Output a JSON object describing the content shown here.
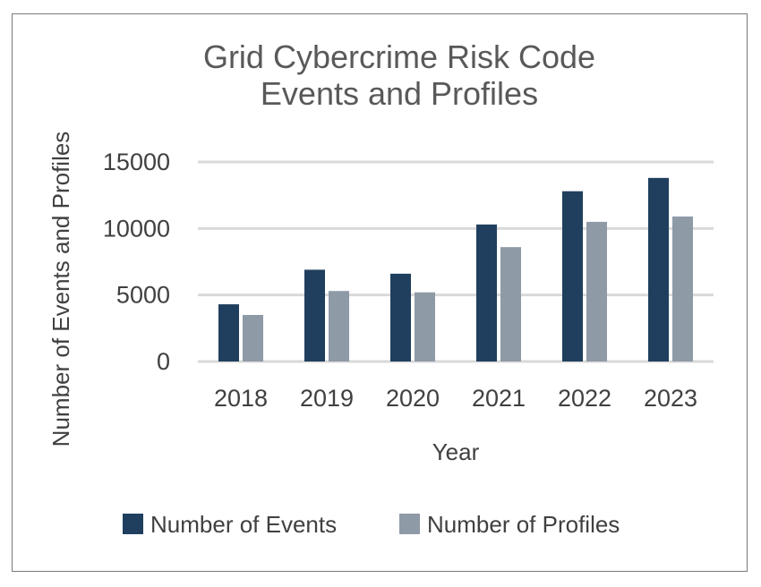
{
  "chart_data": {
    "type": "bar",
    "title": [
      "Grid Cybercrime Risk Code",
      "Events and Profiles"
    ],
    "xlabel": "Year",
    "ylabel": "Number of Events and Profiles",
    "categories": [
      "2018",
      "2019",
      "2020",
      "2021",
      "2022",
      "2023"
    ],
    "series": [
      {
        "name": "Number of Events",
        "color": "#203f5e",
        "values": [
          4300,
          6900,
          6600,
          10300,
          12800,
          13800
        ]
      },
      {
        "name": "Number of Profiles",
        "color": "#8f9aa7",
        "values": [
          3500,
          5300,
          5200,
          8600,
          10500,
          10900
        ]
      }
    ],
    "ylim": [
      0,
      15000
    ],
    "yticks": [
      0,
      5000,
      10000,
      15000
    ],
    "grid": true,
    "legend_position": "bottom"
  }
}
